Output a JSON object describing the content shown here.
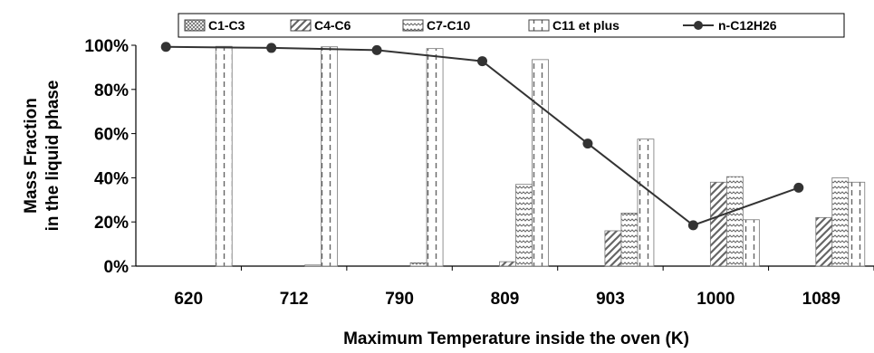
{
  "chart_data": {
    "type": "bar",
    "categories": [
      "620",
      "712",
      "790",
      "809",
      "903",
      "1000",
      "1089"
    ],
    "xlabel": "Maximum Temperature inside the oven (K)",
    "ylabel_line1": "Mass Fraction",
    "ylabel_line2": "in the liquid phase",
    "ylim": [
      0,
      100
    ],
    "yticks": [
      "0%",
      "20%",
      "40%",
      "60%",
      "80%",
      "100%"
    ],
    "grid": false,
    "legend_position": "top",
    "series": [
      {
        "name": "C1-C3",
        "pattern": "crosshatch",
        "values": [
          0,
          0,
          0,
          0,
          0,
          0,
          0
        ]
      },
      {
        "name": "C4-C6",
        "pattern": "diagonal",
        "values": [
          0,
          0,
          0,
          2,
          16,
          38,
          22
        ]
      },
      {
        "name": "C7-C10",
        "pattern": "wave",
        "values": [
          0,
          0.5,
          1.5,
          37,
          24,
          40.5,
          40
        ]
      },
      {
        "name": "C11 et plus",
        "pattern": "dashed-vertical",
        "values": [
          99.5,
          99.3,
          98.5,
          93.5,
          57.5,
          21,
          38
        ]
      }
    ],
    "line_series": {
      "name": "n-C12H26",
      "values": [
        99.3,
        98.8,
        97.8,
        92.8,
        55.5,
        18.5,
        35.5
      ]
    }
  }
}
